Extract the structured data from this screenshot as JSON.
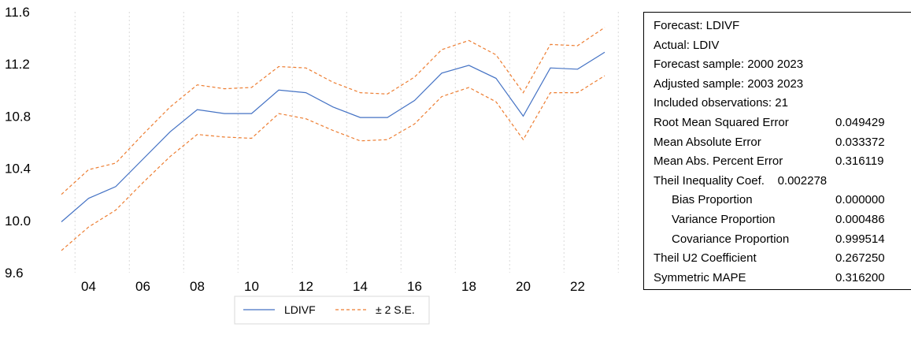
{
  "chart_data": {
    "type": "line",
    "x": [
      "2003",
      "2004",
      "2005",
      "2006",
      "2007",
      "2008",
      "2009",
      "2010",
      "2011",
      "2012",
      "2013",
      "2014",
      "2015",
      "2016",
      "2017",
      "2018",
      "2019",
      "2020",
      "2021",
      "2022",
      "2023"
    ],
    "x_tick_labels": [
      "04",
      "06",
      "08",
      "10",
      "12",
      "14",
      "16",
      "18",
      "20",
      "22"
    ],
    "y_tick_labels": [
      "11.6",
      "11.2",
      "10.8",
      "10.4",
      "10.0",
      "9.6"
    ],
    "ylim": [
      9.6,
      11.6
    ],
    "grid": "vertical dotted",
    "legend_position": "bottom-center",
    "series": [
      {
        "name": "LDIVF",
        "color": "#4472c4",
        "style": "solid",
        "values": [
          9.99,
          10.17,
          10.26,
          10.47,
          10.68,
          10.85,
          10.82,
          10.82,
          11.0,
          10.98,
          10.87,
          10.79,
          10.79,
          10.92,
          11.13,
          11.19,
          11.09,
          10.8,
          11.17,
          11.16,
          11.29
        ]
      },
      {
        "name": "± 2 S.E.",
        "color": "#ed7d31",
        "style": "dashed",
        "values": [
          10.2,
          10.39,
          10.44,
          10.66,
          10.87,
          11.04,
          11.01,
          11.02,
          11.18,
          11.17,
          11.06,
          10.98,
          10.97,
          11.1,
          11.31,
          11.38,
          11.27,
          10.98,
          11.35,
          11.34,
          11.48
        ]
      },
      {
        "name": "",
        "color": "#ed7d31",
        "style": "dashed",
        "values": [
          9.77,
          9.95,
          10.08,
          10.29,
          10.49,
          10.66,
          10.64,
          10.63,
          10.82,
          10.78,
          10.69,
          10.61,
          10.62,
          10.74,
          10.95,
          11.02,
          10.91,
          10.62,
          10.98,
          10.98,
          11.11
        ]
      }
    ]
  },
  "stats": [
    {
      "label": "Forecast: LDIVF",
      "value": "",
      "indent": false
    },
    {
      "label": "Actual: LDIV",
      "value": "",
      "indent": false
    },
    {
      "label": "Forecast sample: 2000 2023",
      "value": "",
      "indent": false
    },
    {
      "label": "Adjusted sample: 2003 2023",
      "value": "",
      "indent": false
    },
    {
      "label": "Included observations: 21",
      "value": "",
      "indent": false
    },
    {
      "label": "Root Mean Squared Error",
      "value": "0.049429",
      "indent": false
    },
    {
      "label": "Mean Absolute Error",
      "value": "0.033372",
      "indent": false
    },
    {
      "label": "Mean Abs. Percent Error",
      "value": "0.316119",
      "indent": false
    },
    {
      "label": "Theil Inequality Coef.    0.002278",
      "value": "",
      "indent": false
    },
    {
      "label": "Bias Proportion",
      "value": "0.000000",
      "indent": true
    },
    {
      "label": "Variance Proportion",
      "value": "0.000486",
      "indent": true
    },
    {
      "label": "Covariance Proportion",
      "value": "0.999514",
      "indent": true
    },
    {
      "label": "Theil U2 Coefficient",
      "value": "0.267250",
      "indent": false
    },
    {
      "label": "Symmetric MAPE",
      "value": "0.316200",
      "indent": false
    }
  ]
}
